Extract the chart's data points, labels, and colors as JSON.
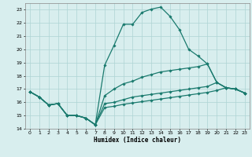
{
  "title": "",
  "xlabel": "Humidex (Indice chaleur)",
  "xlim": [
    -0.5,
    23.5
  ],
  "ylim": [
    14,
    23.5
  ],
  "yticks": [
    14,
    15,
    16,
    17,
    18,
    19,
    20,
    21,
    22,
    23
  ],
  "xticks": [
    0,
    1,
    2,
    3,
    4,
    5,
    6,
    7,
    8,
    9,
    10,
    11,
    12,
    13,
    14,
    15,
    16,
    17,
    18,
    19,
    20,
    21,
    22,
    23
  ],
  "bg_color": "#d8eeee",
  "line_color": "#1a7a6e",
  "grid_color": "#aed4d4",
  "line1_x": [
    0,
    1,
    2,
    3,
    4,
    5,
    6,
    7,
    8,
    9,
    10,
    11,
    12,
    13,
    14,
    15,
    16,
    17,
    18,
    19,
    20,
    21,
    22,
    23
  ],
  "line1_y": [
    16.8,
    16.4,
    15.8,
    15.9,
    15.0,
    15.0,
    14.8,
    14.3,
    18.8,
    20.3,
    21.9,
    21.9,
    22.8,
    23.05,
    23.2,
    22.5,
    21.5,
    20.0,
    19.5,
    18.9,
    17.5,
    17.1,
    17.0,
    16.7
  ],
  "line2_x": [
    0,
    1,
    2,
    3,
    4,
    5,
    6,
    7,
    8,
    9,
    10,
    11,
    12,
    13,
    14,
    15,
    16,
    17,
    18,
    19,
    20,
    21,
    22,
    23
  ],
  "line2_y": [
    16.8,
    16.4,
    15.8,
    15.9,
    15.0,
    15.0,
    14.8,
    14.3,
    16.5,
    17.0,
    17.4,
    17.6,
    17.9,
    18.1,
    18.3,
    18.4,
    18.5,
    18.6,
    18.7,
    18.9,
    17.5,
    17.1,
    17.0,
    16.7
  ],
  "line3_x": [
    0,
    1,
    2,
    3,
    4,
    5,
    6,
    7,
    8,
    9,
    10,
    11,
    12,
    13,
    14,
    15,
    16,
    17,
    18,
    19,
    20,
    21,
    22,
    23
  ],
  "line3_y": [
    16.8,
    16.4,
    15.8,
    15.9,
    15.0,
    15.0,
    14.8,
    14.3,
    15.9,
    16.0,
    16.2,
    16.4,
    16.5,
    16.6,
    16.7,
    16.8,
    16.9,
    17.0,
    17.1,
    17.2,
    17.5,
    17.1,
    17.0,
    16.7
  ],
  "line4_x": [
    0,
    1,
    2,
    3,
    4,
    5,
    6,
    7,
    8,
    9,
    10,
    11,
    12,
    13,
    14,
    15,
    16,
    17,
    18,
    19,
    20,
    21,
    22,
    23
  ],
  "line4_y": [
    16.8,
    16.4,
    15.8,
    15.9,
    15.0,
    15.0,
    14.8,
    14.3,
    15.6,
    15.7,
    15.85,
    15.95,
    16.05,
    16.15,
    16.25,
    16.35,
    16.45,
    16.55,
    16.65,
    16.75,
    16.9,
    17.1,
    17.0,
    16.7
  ]
}
